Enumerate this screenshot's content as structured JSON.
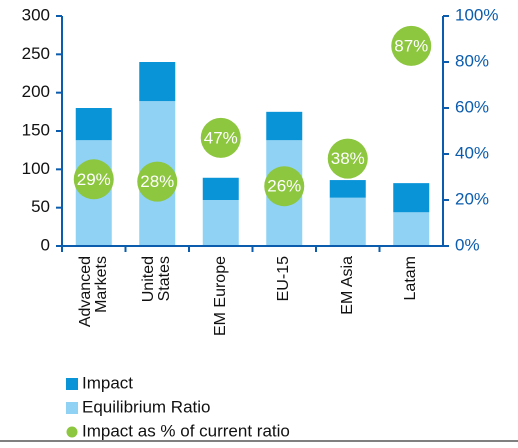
{
  "chart_data": {
    "type": "bar",
    "categories": [
      "Advanced Markets",
      "United States",
      "EM Europe",
      "EU-15",
      "EM Asia",
      "Latam"
    ],
    "stacked": true,
    "series": [
      {
        "name": "Impact",
        "color": "#0a94d8",
        "values": [
          42,
          51,
          29,
          37,
          23,
          38
        ]
      },
      {
        "name": "Equilibrium Ratio",
        "color": "#8fd2f4",
        "values": [
          138,
          189,
          60,
          138,
          63,
          44
        ]
      },
      {
        "name": "Impact as % of current ratio",
        "color": "#8dc63f",
        "type": "scatter",
        "axis": "y2",
        "values": [
          29,
          28,
          47,
          26,
          38,
          87
        ],
        "value_labels": [
          "29%",
          "28%",
          "47%",
          "26%",
          "38%",
          "87%"
        ]
      }
    ],
    "ylim": [
      0,
      300
    ],
    "yticks": [
      0,
      50,
      100,
      150,
      200,
      250,
      300
    ],
    "y2lim": [
      0,
      100
    ],
    "y2ticks": [
      {
        "value": 0,
        "label": "0%"
      },
      {
        "value": 20,
        "label": "20%"
      },
      {
        "value": 40,
        "label": "40%"
      },
      {
        "value": 60,
        "label": "60%"
      },
      {
        "value": 80,
        "label": "80%"
      },
      {
        "value": 100,
        "label": "100%"
      }
    ],
    "legend": "bottom-left"
  }
}
